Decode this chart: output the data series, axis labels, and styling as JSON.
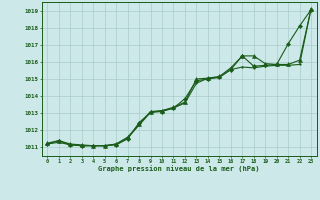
{
  "title": "Graphe pression niveau de la mer (hPa)",
  "bg_color": "#cce8e8",
  "grid_color": "#aacccc",
  "line_color": "#1a5c1a",
  "xlim": [
    -0.5,
    23.5
  ],
  "ylim": [
    1010.5,
    1019.5
  ],
  "xticks": [
    0,
    1,
    2,
    3,
    4,
    5,
    6,
    7,
    8,
    9,
    10,
    11,
    12,
    13,
    14,
    15,
    16,
    17,
    18,
    19,
    20,
    21,
    22,
    23
  ],
  "yticks": [
    1011,
    1012,
    1013,
    1014,
    1015,
    1016,
    1017,
    1018,
    1019
  ],
  "series": [
    {
      "x": [
        0,
        1,
        2,
        3,
        4,
        5,
        6,
        7,
        8,
        9,
        10,
        11,
        12,
        13,
        14,
        15,
        16,
        17,
        18,
        19,
        20,
        21,
        22,
        23
      ],
      "y": [
        1011.2,
        1011.4,
        1011.15,
        1011.1,
        1011.1,
        1011.1,
        1011.15,
        1011.5,
        1012.45,
        1013.05,
        1013.1,
        1013.3,
        1013.85,
        1014.9,
        1015.0,
        1015.1,
        1015.55,
        1016.35,
        1015.75,
        1015.8,
        1015.85,
        1017.05,
        1018.1,
        1019.05
      ],
      "marker": "D",
      "markersize": 2.2,
      "linewidth": 0.8
    },
    {
      "x": [
        0,
        1,
        2,
        3,
        4,
        5,
        6,
        7,
        8,
        9,
        10,
        11,
        12,
        13,
        14,
        15,
        16,
        17,
        18,
        19,
        20,
        21,
        22,
        23
      ],
      "y": [
        1011.25,
        1011.4,
        1011.2,
        1011.15,
        1011.1,
        1011.1,
        1011.2,
        1011.6,
        1012.35,
        1013.1,
        1013.15,
        1013.35,
        1013.65,
        1015.0,
        1015.05,
        1015.15,
        1015.65,
        1016.35,
        1016.35,
        1015.9,
        1015.85,
        1015.85,
        1016.1,
        1019.1
      ],
      "marker": "^",
      "markersize": 3.0,
      "linewidth": 0.8
    },
    {
      "x": [
        0,
        1,
        2,
        3,
        4,
        5,
        6,
        7,
        8,
        9,
        10,
        11,
        12,
        13,
        14,
        15,
        16,
        17,
        18,
        19,
        20,
        21,
        22,
        23
      ],
      "y": [
        1011.2,
        1011.3,
        1011.15,
        1011.1,
        1011.1,
        1011.1,
        1011.2,
        1011.55,
        1012.3,
        1013.05,
        1013.15,
        1013.3,
        1013.6,
        1014.75,
        1015.05,
        1015.1,
        1015.55,
        1015.7,
        1015.65,
        1015.75,
        1015.8,
        1015.8,
        1015.85,
        1019.1
      ],
      "marker": ".",
      "markersize": 2.5,
      "linewidth": 0.8
    }
  ]
}
